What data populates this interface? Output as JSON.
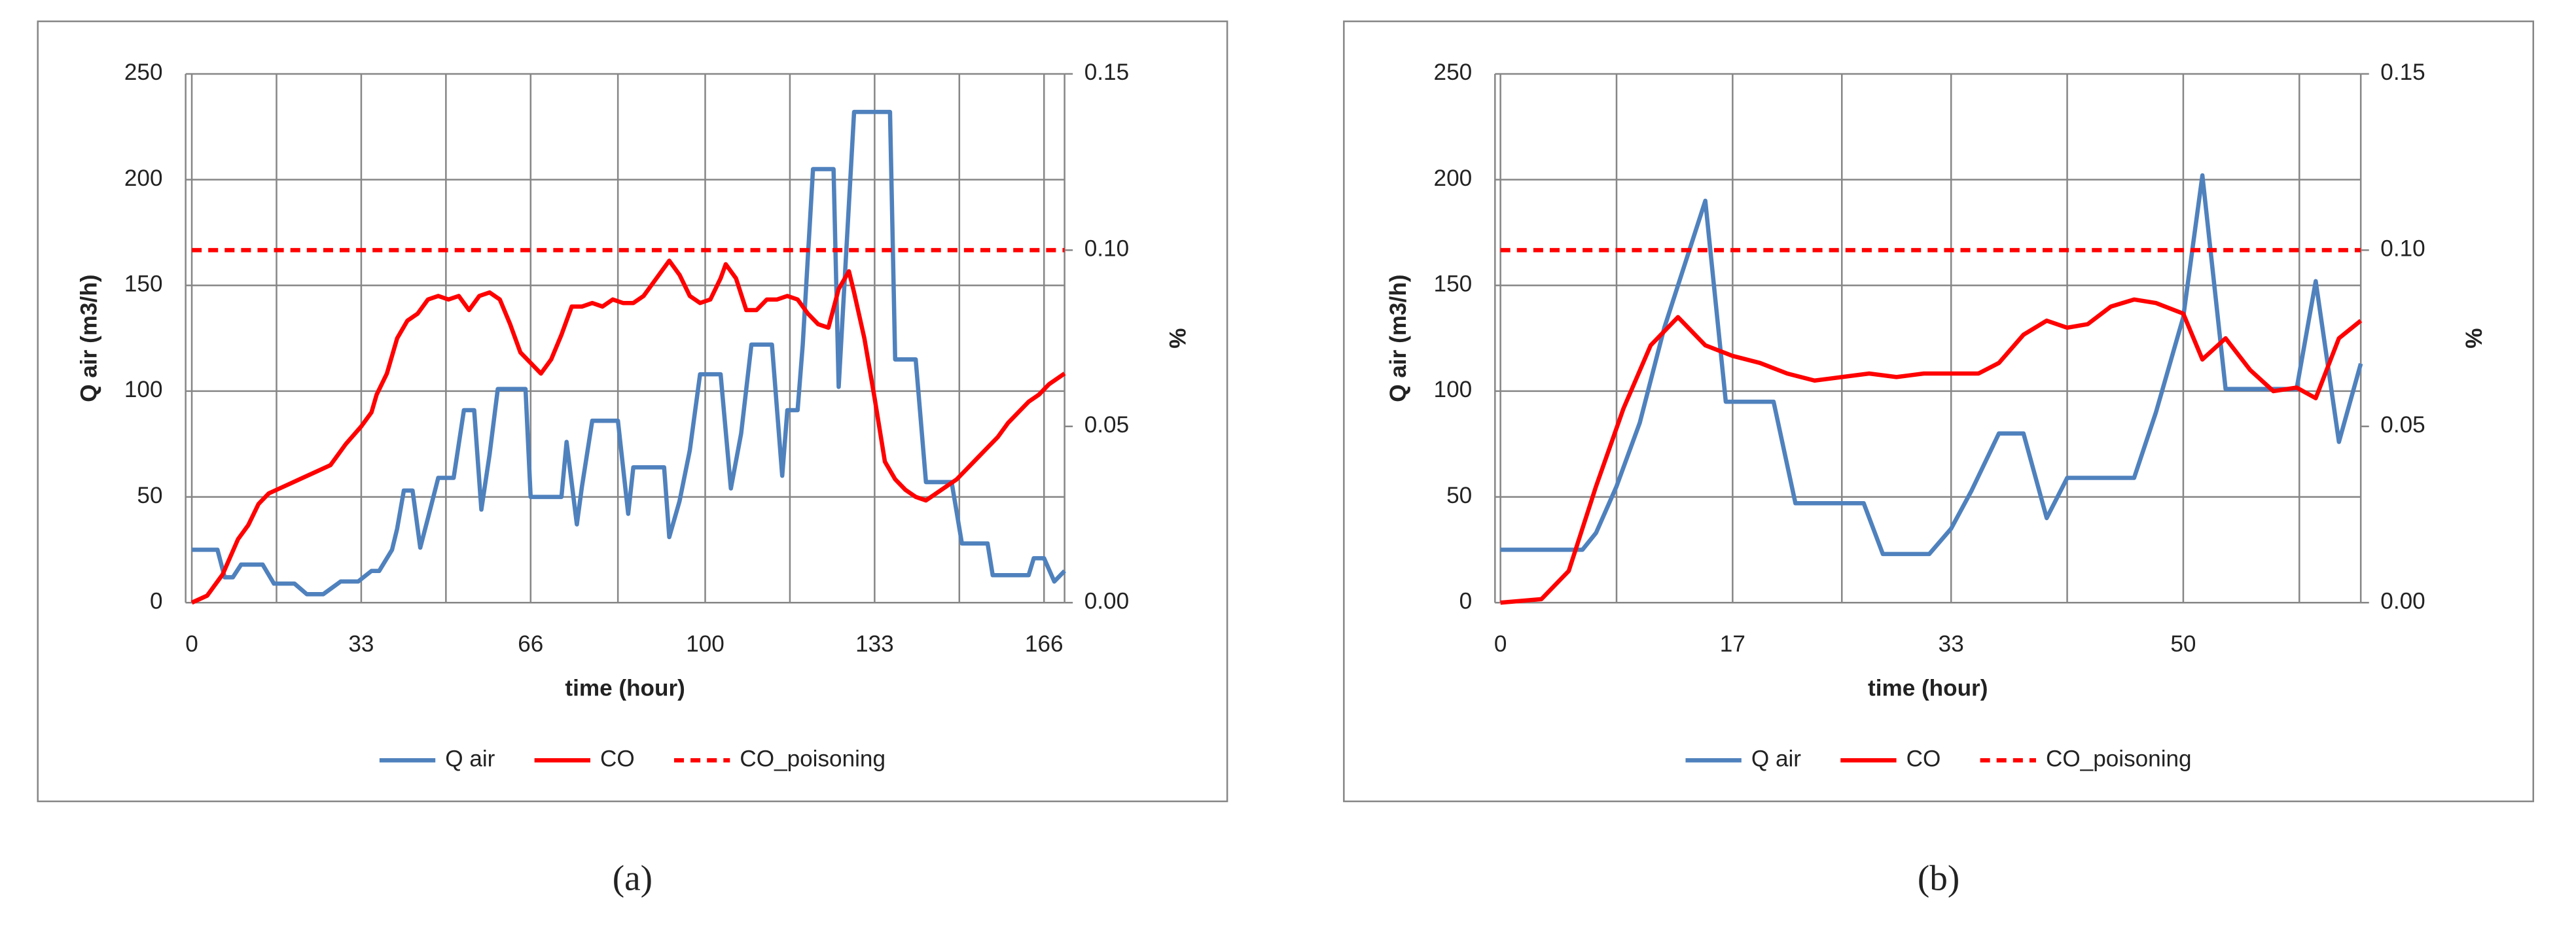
{
  "chart_data": [
    {
      "type": "line",
      "caption": "(a)",
      "xlabel": "time (hour)",
      "ylabel": "Q air (m3/h)",
      "y2label": "%",
      "xlim": [
        -1.2,
        170
      ],
      "xticks": [
        0,
        33,
        66,
        100,
        133,
        166
      ],
      "ylim": [
        0,
        250
      ],
      "yticks": [
        0,
        50,
        100,
        150,
        200,
        250
      ],
      "y2lim": [
        0,
        0.15
      ],
      "y2ticks": [
        {
          "value": 0,
          "label": "0.00"
        },
        0.05,
        {
          "value": 0.1,
          "label": "0.10"
        },
        0.15
      ],
      "grid": true,
      "legend": "bottom",
      "series": [
        {
          "name": "Q air",
          "color": "#4f81bd",
          "linestyle": "solid",
          "x": [
            0,
            5,
            6.4,
            8,
            9.6,
            13.8,
            16,
            20,
            22.4,
            25.6,
            29,
            32.4,
            35,
            36.5,
            39,
            40,
            41.3,
            43,
            44.5,
            46,
            48,
            51,
            53,
            55,
            56.4,
            58,
            59.6,
            65,
            66,
            72,
            73,
            75,
            76,
            78,
            83,
            85,
            86,
            92,
            93,
            95,
            97,
            99,
            103,
            105,
            107,
            109,
            113,
            115,
            116,
            118,
            119,
            121,
            125,
            126,
            129,
            136,
            137,
            141,
            143,
            148,
            150,
            155,
            156,
            163,
            164,
            166,
            168,
            170
          ],
          "values": [
            25,
            25,
            12,
            12,
            18,
            18,
            9,
            9,
            4,
            4,
            10,
            10,
            15,
            15,
            25,
            35,
            53,
            53,
            26,
            40,
            59,
            59,
            91,
            91,
            44,
            70,
            101,
            101,
            50,
            50,
            76,
            37,
            55,
            86,
            86,
            42,
            64,
            64,
            31,
            48,
            72,
            108,
            108,
            54,
            80,
            122,
            122,
            60,
            91,
            91,
            122,
            205,
            205,
            102,
            232,
            232,
            115,
            115,
            57,
            57,
            28,
            28,
            13,
            13,
            21,
            21,
            10,
            15
          ]
        },
        {
          "name": "CO",
          "color": "#ff0000",
          "linestyle": "solid",
          "axis": "y2",
          "x": [
            0,
            3,
            6,
            9,
            11,
            13,
            15,
            18,
            21,
            24,
            27,
            30,
            33,
            35,
            36,
            38,
            40,
            42,
            44,
            46,
            48,
            50,
            52,
            54,
            56,
            58,
            60,
            62,
            64,
            66,
            68,
            70,
            72,
            74,
            76,
            78,
            80,
            82,
            84,
            86,
            88,
            90,
            92,
            93,
            95,
            97,
            99,
            101,
            103,
            104,
            106,
            108,
            110,
            112,
            114,
            116,
            118,
            120,
            122,
            124,
            126,
            128,
            129,
            131,
            133,
            135,
            137,
            139,
            141,
            143,
            145,
            147,
            149,
            151,
            153,
            155,
            157,
            159,
            161,
            163,
            165,
            167,
            170
          ],
          "values": [
            0,
            0.002,
            0.008,
            0.018,
            0.022,
            0.028,
            0.031,
            0.033,
            0.035,
            0.037,
            0.039,
            0.045,
            0.05,
            0.054,
            0.059,
            0.065,
            0.075,
            0.08,
            0.082,
            0.086,
            0.087,
            0.086,
            0.087,
            0.083,
            0.087,
            0.088,
            0.086,
            0.079,
            0.071,
            0.068,
            0.065,
            0.069,
            0.076,
            0.084,
            0.084,
            0.085,
            0.084,
            0.086,
            0.085,
            0.085,
            0.087,
            0.091,
            0.095,
            0.097,
            0.093,
            0.087,
            0.085,
            0.086,
            0.092,
            0.096,
            0.092,
            0.083,
            0.083,
            0.086,
            0.086,
            0.087,
            0.086,
            0.082,
            0.079,
            0.078,
            0.089,
            0.094,
            0.088,
            0.075,
            0.058,
            0.04,
            0.035,
            0.032,
            0.03,
            0.029,
            0.031,
            0.033,
            0.035,
            0.038,
            0.041,
            0.044,
            0.047,
            0.051,
            0.054,
            0.057,
            0.059,
            0.062,
            0.065
          ]
        },
        {
          "name": "CO_poisoning",
          "color": "#ff0000",
          "linestyle": "dashed",
          "axis": "y2",
          "x": [
            0,
            170
          ],
          "values": [
            0.1,
            0.1
          ]
        }
      ]
    },
    {
      "type": "line",
      "caption": "(b)",
      "xlabel": "time (hour)",
      "ylabel": "Q air (m3/h)",
      "y2label": "%",
      "xlim": [
        -0.4,
        63
      ],
      "xticks": [
        0,
        17,
        33,
        50
      ],
      "ylim": [
        0,
        250
      ],
      "yticks": [
        0,
        50,
        100,
        150,
        200,
        250
      ],
      "y2lim": [
        0,
        0.15
      ],
      "y2ticks": [
        {
          "value": 0,
          "label": "0.00"
        },
        0.05,
        {
          "value": 0.1,
          "label": "0.10"
        },
        0.15
      ],
      "grid": true,
      "legend": "bottom",
      "series": [
        {
          "name": "Q air",
          "color": "#4f81bd",
          "linestyle": "solid",
          "x": [
            0,
            6,
            7,
            8.5,
            10.2,
            12,
            15,
            16.5,
            20,
            21.6,
            26.6,
            28,
            31.4,
            33,
            34.5,
            36.5,
            38.3,
            40,
            41.5,
            46.4,
            48,
            50,
            51.4,
            53.1,
            58.3,
            59.7,
            61.4,
            63
          ],
          "values": [
            25,
            25,
            33,
            55,
            85,
            130,
            190,
            95,
            95,
            47,
            47,
            23,
            23,
            35,
            53,
            80,
            80,
            40,
            59,
            59,
            90,
            135,
            202,
            101,
            101,
            152,
            76,
            113
          ]
        },
        {
          "name": "CO",
          "color": "#ff0000",
          "linestyle": "solid",
          "axis": "y2",
          "x": [
            0,
            3,
            5,
            7,
            9,
            11,
            13,
            15,
            17,
            19,
            21,
            23,
            25,
            27,
            29,
            31,
            33,
            35,
            36.5,
            38.3,
            40,
            41.5,
            43,
            44.7,
            46.4,
            48,
            50,
            51.4,
            53.1,
            54.9,
            56.6,
            58.3,
            59.7,
            61.4,
            63
          ],
          "values": [
            0,
            0.001,
            0.009,
            0.033,
            0.055,
            0.073,
            0.081,
            0.073,
            0.07,
            0.068,
            0.065,
            0.063,
            0.064,
            0.065,
            0.064,
            0.065,
            0.065,
            0.065,
            0.068,
            0.076,
            0.08,
            0.078,
            0.079,
            0.084,
            0.086,
            0.085,
            0.082,
            0.069,
            0.075,
            0.066,
            0.06,
            0.061,
            0.058,
            0.075,
            0.08
          ]
        },
        {
          "name": "CO_poisoning",
          "color": "#ff0000",
          "linestyle": "dashed",
          "axis": "y2",
          "x": [
            0,
            63
          ],
          "values": [
            0.1,
            0.1
          ]
        }
      ]
    }
  ]
}
